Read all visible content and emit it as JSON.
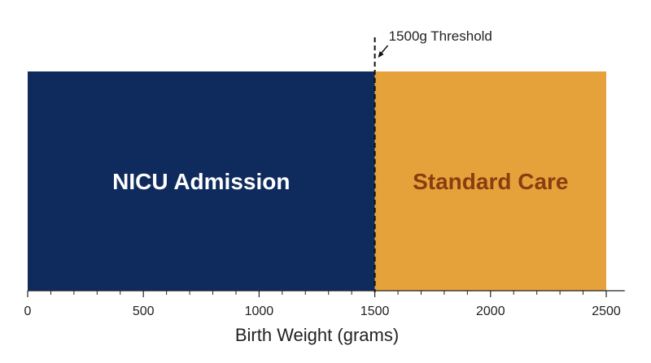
{
  "colors": {
    "nicu": "#0f2b5e",
    "standard": "#e6a23a",
    "nicu_text": "#ffffff",
    "standard_text": "#8a3d0f",
    "axis": "#222222",
    "threshold_line": "#111111"
  },
  "chart_data": {
    "type": "bar",
    "orientation": "horizontal-segments",
    "segments": [
      {
        "label": "NICU Admission",
        "start": 0,
        "end": 1500
      },
      {
        "label": "Standard Care",
        "start": 1500,
        "end": 2500
      }
    ],
    "threshold": {
      "value": 1500,
      "label": "1500g Threshold",
      "style": "dashed"
    },
    "xlabel": "Birth Weight (grams)",
    "xlim": [
      0,
      2580
    ],
    "major_ticks": [
      0,
      500,
      1000,
      1500,
      2000,
      2500
    ],
    "tick_labels": [
      "0",
      "500",
      "1000",
      "1500",
      "2000",
      "2500"
    ],
    "minor_tick_step": 100,
    "grid": false,
    "legend": "none"
  }
}
